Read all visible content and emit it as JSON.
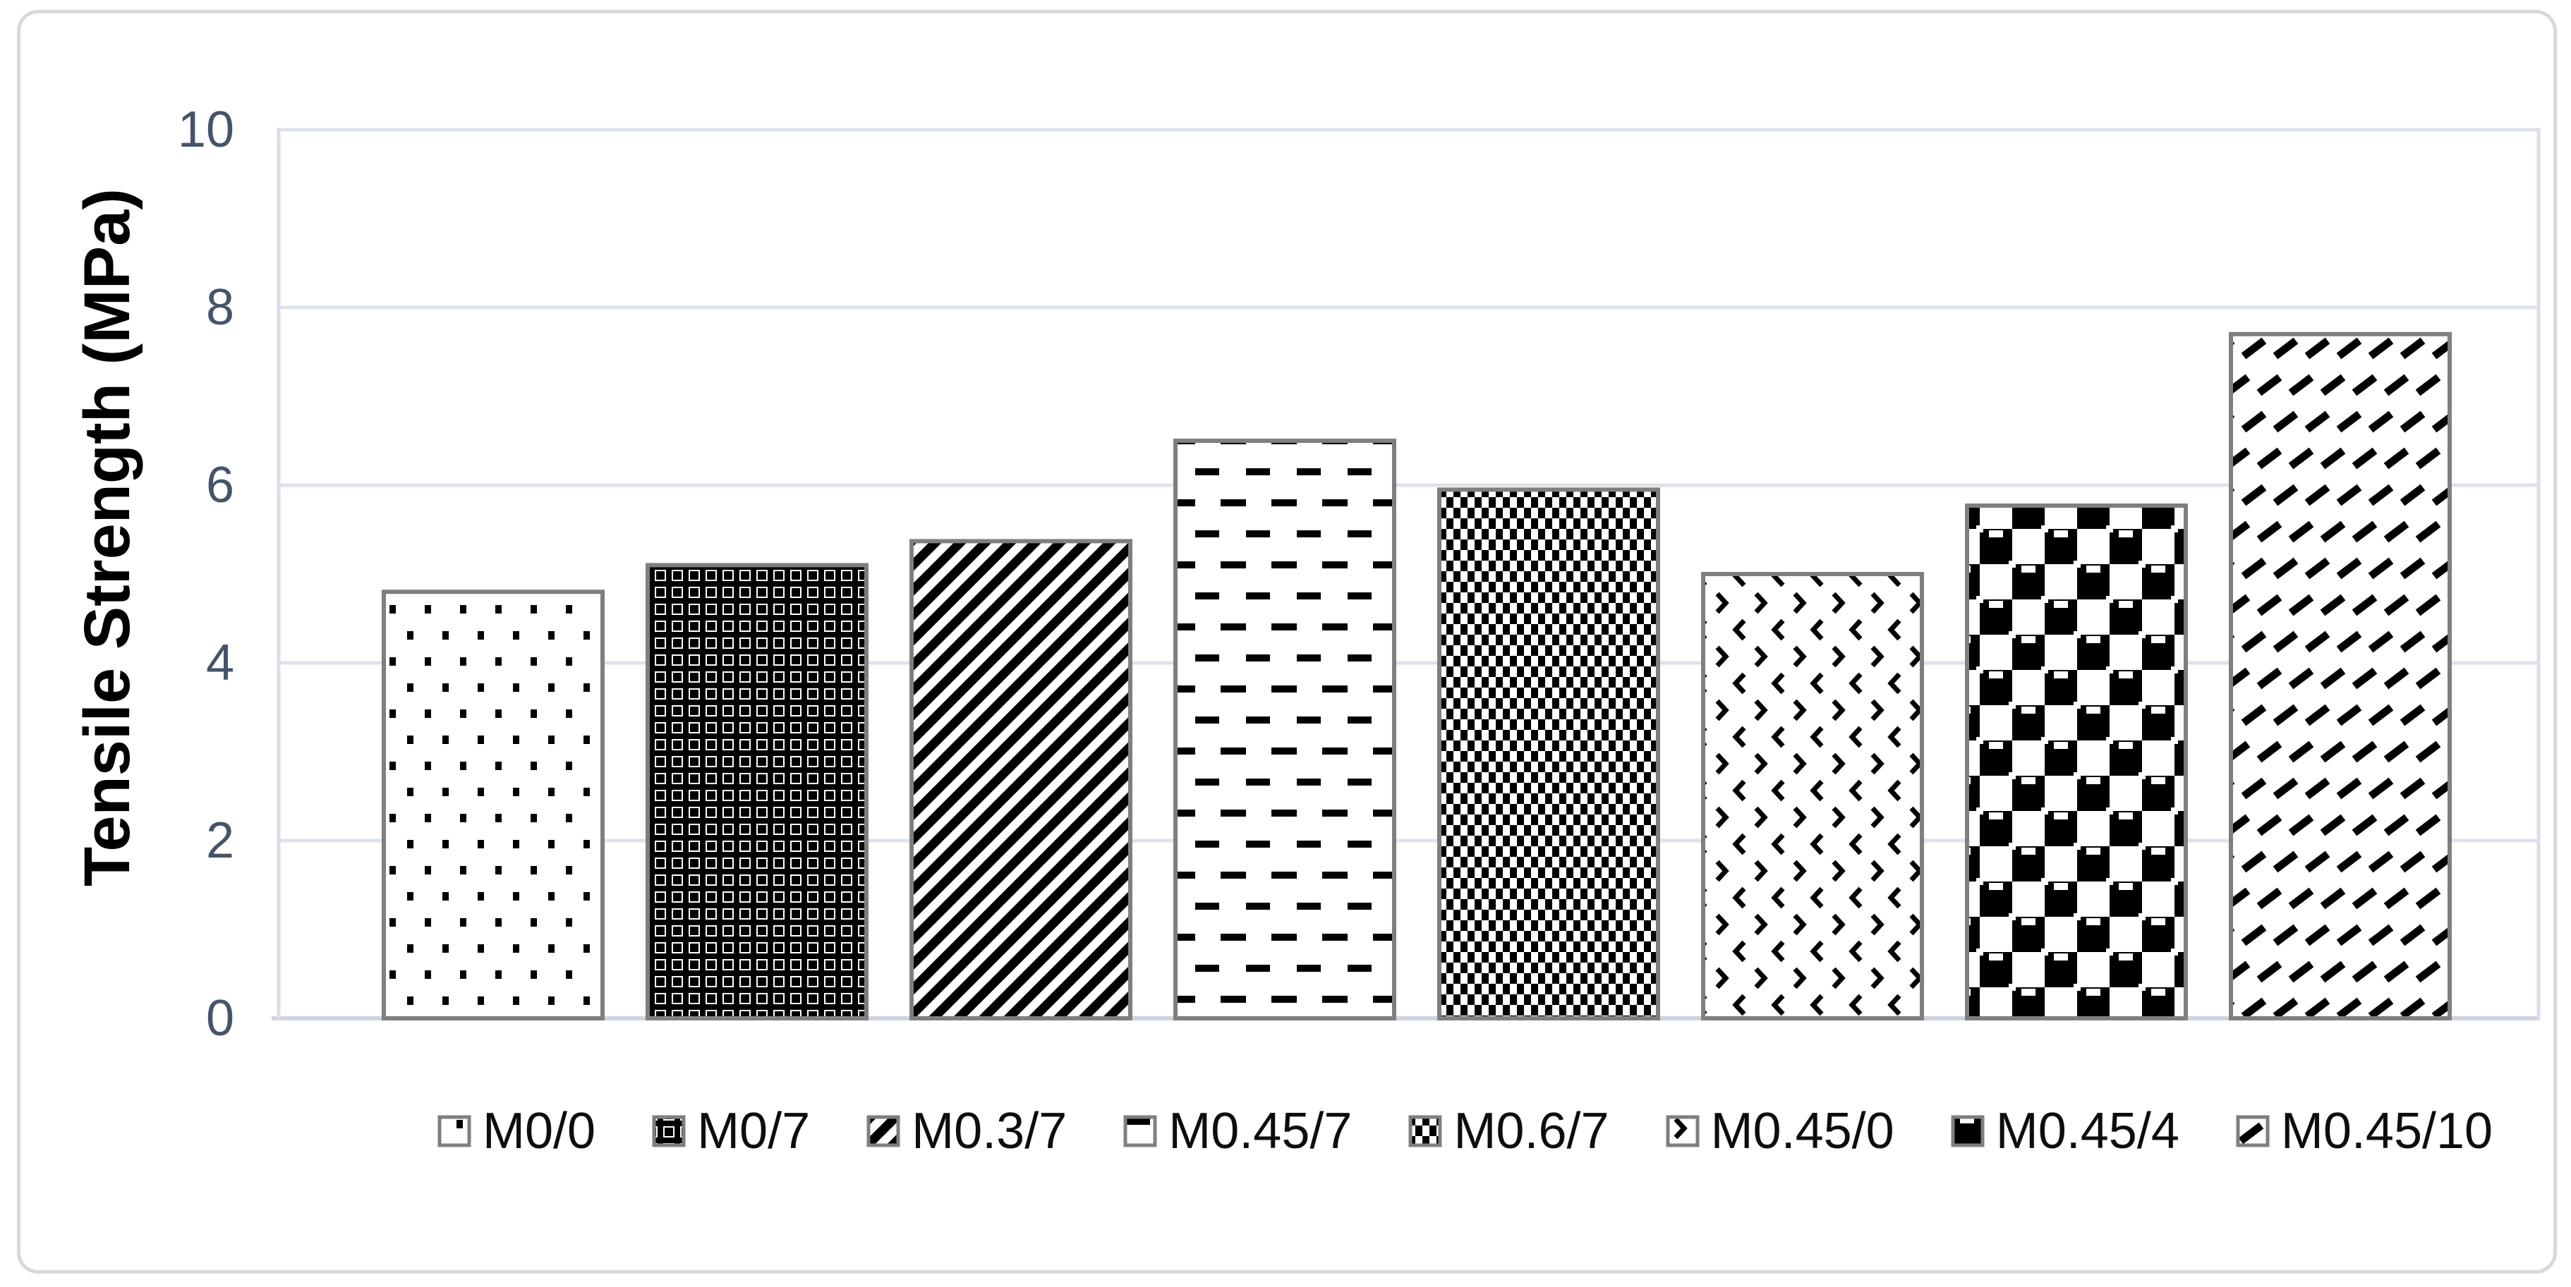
{
  "chart_data": {
    "type": "bar",
    "title": "",
    "xlabel": "",
    "ylabel": "Tensile Strength (MPa)",
    "ylim": [
      0,
      10
    ],
    "y_ticks": [
      0,
      2,
      4,
      6,
      8,
      10
    ],
    "grid": true,
    "legend_position": "bottom",
    "categories": [
      "M0/0",
      "M0/7",
      "M0.3/7",
      "M0.45/7",
      "M0.6/7",
      "M0.45/0",
      "M0.45/4",
      "M0.45/10"
    ],
    "values": [
      4.8,
      5.1,
      5.37,
      6.5,
      5.95,
      5.0,
      5.77,
      7.7
    ],
    "series": [
      {
        "name": "Tensile Strength",
        "values": [
          4.8,
          5.1,
          5.37,
          6.5,
          5.95,
          5.0,
          5.77,
          7.7
        ]
      }
    ],
    "bar_patterns": [
      "dots",
      "cross-weave",
      "diagonal-stripes-down",
      "horizontal-dashes",
      "checker-small",
      "chevrons",
      "checker-large-dotted",
      "diagonal-dashes-up"
    ]
  },
  "colors": {
    "background": "#FFFFFF",
    "chart_border": "#D9D9D9",
    "gridline": "#DDE2EB",
    "axis_line": "#CDD4E0",
    "plot_border": "#D9DEE8",
    "bar_border": "#7F7F7F",
    "bar_fill": "#FFFFFF",
    "pattern_ink": "#000000",
    "axis_label_text": "#44546A",
    "axis_title_text": "#000000",
    "legend_text": "#0D0D0D"
  }
}
